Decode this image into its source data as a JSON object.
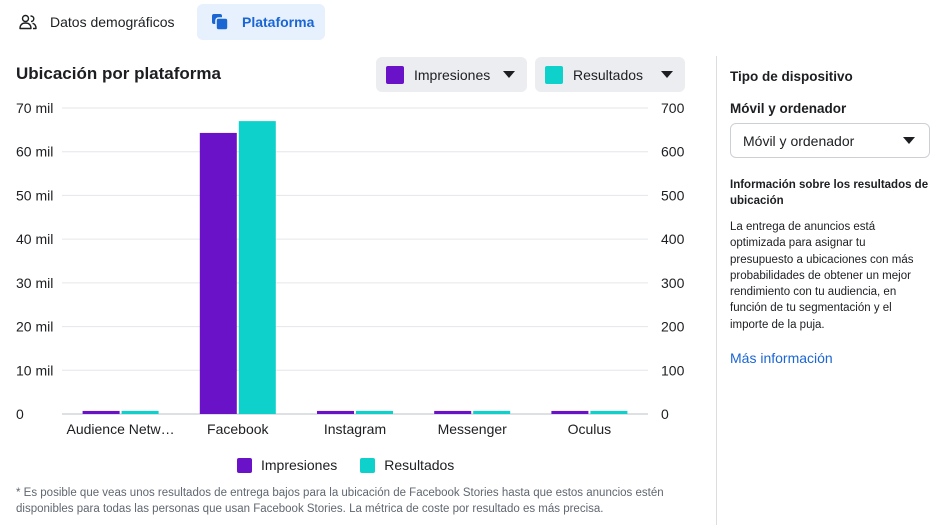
{
  "tabs": [
    {
      "label": "Datos demográficos",
      "icon": "people-icon",
      "active": false
    },
    {
      "label": "Plataforma",
      "icon": "platform-icon",
      "active": true
    }
  ],
  "chart_title": "Ubicación por plataforma",
  "dropdowns": {
    "left_metric": {
      "label": "Impresiones",
      "color": "#6a12c8"
    },
    "right_metric": {
      "label": "Resultados",
      "color": "#0fd1cc"
    }
  },
  "chart_data": {
    "type": "bar",
    "title": "Ubicación por plataforma",
    "categories": [
      "Audience Netw…",
      "Facebook",
      "Instagram",
      "Messenger",
      "Oculus"
    ],
    "series": [
      {
        "name": "Impresiones",
        "axis": "left",
        "color": "#6a12c8",
        "values": [
          700,
          64300,
          700,
          700,
          700
        ]
      },
      {
        "name": "Resultados",
        "axis": "right",
        "color": "#0fd1cc",
        "values": [
          7,
          670,
          7,
          7,
          7
        ]
      }
    ],
    "y_left": {
      "min": 0,
      "max": 70000,
      "ticks": [
        0,
        10000,
        20000,
        30000,
        40000,
        50000,
        60000,
        70000
      ],
      "tick_labels": [
        "0",
        "10 mil",
        "20 mil",
        "30 mil",
        "40 mil",
        "50 mil",
        "60 mil",
        "70 mil"
      ]
    },
    "y_right": {
      "min": 0,
      "max": 700,
      "ticks": [
        0,
        100,
        200,
        300,
        400,
        500,
        600,
        700
      ],
      "tick_labels": [
        "0",
        "100",
        "200",
        "300",
        "400",
        "500",
        "600",
        "700"
      ]
    },
    "grid": true,
    "legend": "bottom"
  },
  "legend_items": [
    "Impresiones",
    "Resultados"
  ],
  "footnote": "* Es posible que veas unos resultados de entrega bajos para la ubicación de Facebook Stories hasta que estos anuncios estén disponibles para todas las personas que usan Facebook Stories. La métrica de coste por resultado es más precisa.",
  "sidebar": {
    "heading": "Tipo de dispositivo",
    "subheading": "Móvil y ordenador",
    "select_value": "Móvil y ordenador",
    "info_title": "Información sobre los resultados de ubicación",
    "info_body": "La entrega de anuncios está optimizada para asignar tu presupuesto a ubicaciones con más probabilidades de obtener un mejor rendimiento con tu audiencia, en función de tu segmentación y el importe de la puja.",
    "link": "Más información"
  }
}
